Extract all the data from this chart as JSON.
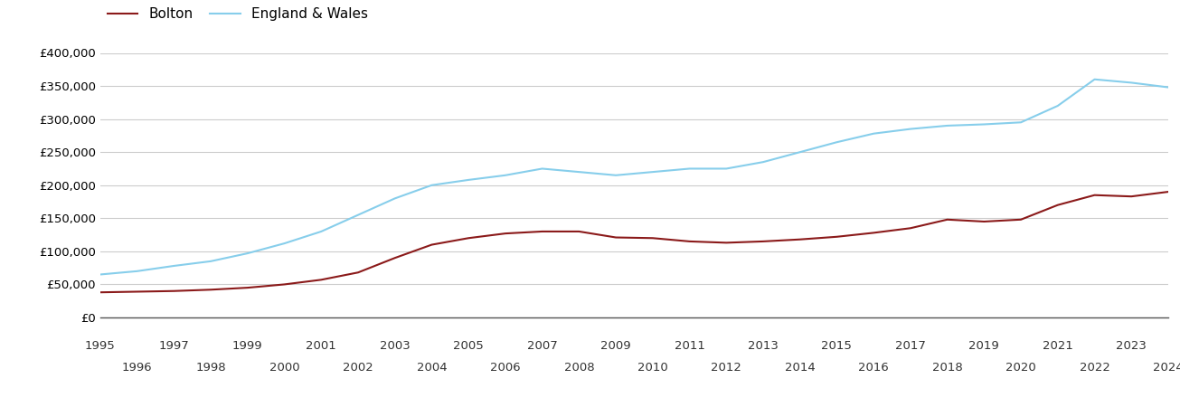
{
  "bolton": {
    "years": [
      1995,
      1996,
      1997,
      1998,
      1999,
      2000,
      2001,
      2002,
      2003,
      2004,
      2005,
      2006,
      2007,
      2008,
      2009,
      2010,
      2011,
      2012,
      2013,
      2014,
      2015,
      2016,
      2017,
      2018,
      2019,
      2020,
      2021,
      2022,
      2023,
      2024
    ],
    "values": [
      38000,
      39000,
      40000,
      42000,
      45000,
      50000,
      57000,
      68000,
      90000,
      110000,
      120000,
      127000,
      130000,
      130000,
      121000,
      120000,
      115000,
      113000,
      115000,
      118000,
      122000,
      128000,
      135000,
      148000,
      145000,
      148000,
      170000,
      185000,
      183000,
      190000
    ]
  },
  "england_wales": {
    "years": [
      1995,
      1996,
      1997,
      1998,
      1999,
      2000,
      2001,
      2002,
      2003,
      2004,
      2005,
      2006,
      2007,
      2008,
      2009,
      2010,
      2011,
      2012,
      2013,
      2014,
      2015,
      2016,
      2017,
      2018,
      2019,
      2020,
      2021,
      2022,
      2023,
      2024
    ],
    "values": [
      65000,
      70000,
      78000,
      85000,
      97000,
      112000,
      130000,
      155000,
      180000,
      200000,
      208000,
      215000,
      225000,
      220000,
      215000,
      220000,
      225000,
      225000,
      235000,
      250000,
      265000,
      278000,
      285000,
      290000,
      292000,
      295000,
      320000,
      360000,
      355000,
      348000
    ]
  },
  "bolton_color": "#8B1A1A",
  "england_wales_color": "#87CEEB",
  "bolton_label": "Bolton",
  "england_wales_label": "England & Wales",
  "ylim": [
    0,
    400000
  ],
  "yticks": [
    0,
    50000,
    100000,
    150000,
    200000,
    250000,
    300000,
    350000,
    400000
  ],
  "odd_years": [
    1995,
    1997,
    1999,
    2001,
    2003,
    2005,
    2007,
    2009,
    2011,
    2013,
    2015,
    2017,
    2019,
    2021,
    2023
  ],
  "even_years": [
    1996,
    1998,
    2000,
    2002,
    2004,
    2006,
    2008,
    2010,
    2012,
    2014,
    2016,
    2018,
    2020,
    2022,
    2024
  ],
  "background_color": "#ffffff",
  "grid_color": "#cccccc",
  "line_width": 1.5,
  "tick_fontsize": 9.5,
  "legend_fontsize": 11
}
